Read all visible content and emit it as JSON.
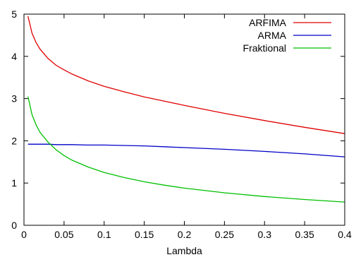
{
  "chart_data": {
    "type": "line",
    "title": "",
    "xlabel": "Lambda",
    "ylabel": "",
    "xlim": [
      0,
      0.4
    ],
    "ylim": [
      0,
      5
    ],
    "xticks": [
      0,
      0.05,
      0.1,
      0.15,
      0.2,
      0.25,
      0.3,
      0.35,
      0.4
    ],
    "xtick_labels": [
      "0",
      "0.05",
      "0.1",
      "0.15",
      "0.2",
      "0.25",
      "0.3",
      "0.35",
      "0.4"
    ],
    "yticks": [
      0,
      1,
      2,
      3,
      4,
      5
    ],
    "ytick_labels": [
      "0",
      "1",
      "2",
      "3",
      "4",
      "5"
    ],
    "grid": false,
    "legend_position": "top-right",
    "x": [
      0.005,
      0.01,
      0.015,
      0.02,
      0.03,
      0.04,
      0.05,
      0.06,
      0.08,
      0.1,
      0.125,
      0.15,
      0.175,
      0.2,
      0.25,
      0.3,
      0.35,
      0.4
    ],
    "series": [
      {
        "name": "ARFIMA",
        "color": "#e00000",
        "values": [
          4.95,
          4.55,
          4.33,
          4.17,
          3.95,
          3.79,
          3.68,
          3.58,
          3.42,
          3.29,
          3.16,
          3.04,
          2.94,
          2.84,
          2.65,
          2.48,
          2.32,
          2.17
        ]
      },
      {
        "name": "ARMA",
        "color": "#0000c8",
        "values": [
          1.92,
          1.92,
          1.92,
          1.92,
          1.92,
          1.91,
          1.91,
          1.91,
          1.9,
          1.9,
          1.89,
          1.88,
          1.86,
          1.84,
          1.8,
          1.75,
          1.69,
          1.62
        ]
      },
      {
        "name": "Fraktional",
        "color": "#00c000",
        "values": [
          3.05,
          2.62,
          2.38,
          2.2,
          1.97,
          1.79,
          1.65,
          1.54,
          1.38,
          1.25,
          1.13,
          1.03,
          0.95,
          0.88,
          0.77,
          0.68,
          0.61,
          0.55
        ]
      }
    ]
  }
}
